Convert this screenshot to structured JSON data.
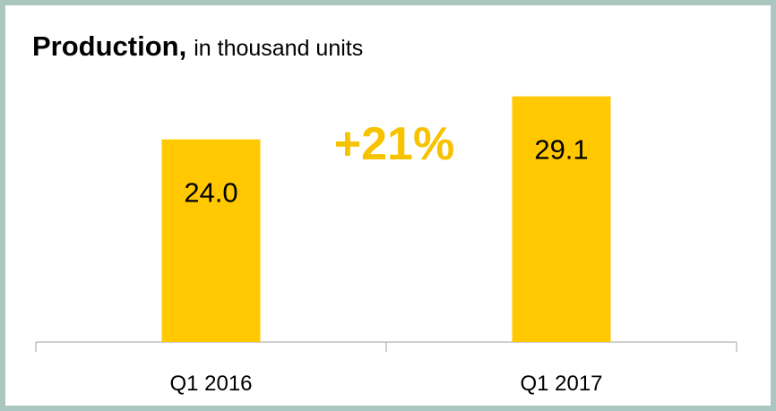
{
  "chart_data": {
    "type": "bar",
    "title": "Production,",
    "subtitle": "in thousand units",
    "categories": [
      "Q1 2016",
      "Q1 2017"
    ],
    "values": [
      24.0,
      29.1
    ],
    "value_labels": [
      "24.0",
      "29.1"
    ],
    "color": "#ffc800",
    "annotation": "+21%",
    "annotation_color": "#f7c300"
  }
}
